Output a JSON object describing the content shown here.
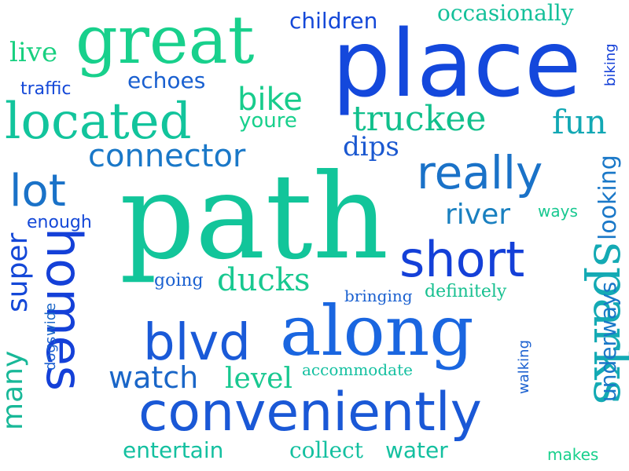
{
  "word_cloud": {
    "words": [
      {
        "text": "path",
        "color": "#12c59a"
      },
      {
        "text": "place",
        "color": "#1448dc"
      },
      {
        "text": "great",
        "color": "#18d08c"
      },
      {
        "text": "along",
        "color": "#1a66e0"
      },
      {
        "text": "conveniently",
        "color": "#1a58d6"
      },
      {
        "text": "located",
        "color": "#12c49c"
      },
      {
        "text": "blvd",
        "color": "#1a5ad8"
      },
      {
        "text": "sparks",
        "color": "#14aab4"
      },
      {
        "text": "short",
        "color": "#1440d8"
      },
      {
        "text": "homes",
        "color": "#1440d8"
      },
      {
        "text": "really",
        "color": "#1a72c8"
      },
      {
        "text": "lot",
        "color": "#1a72c8"
      },
      {
        "text": "truckee",
        "color": "#12c08c"
      },
      {
        "text": "connector",
        "color": "#1a78c8"
      },
      {
        "text": "watch",
        "color": "#1a66c8"
      },
      {
        "text": "fun",
        "color": "#12a8b4"
      },
      {
        "text": "bike",
        "color": "#18cc8c"
      },
      {
        "text": "river",
        "color": "#1a80c0"
      },
      {
        "text": "ducks",
        "color": "#18c890"
      },
      {
        "text": "level",
        "color": "#18c890"
      },
      {
        "text": "dips",
        "color": "#1a58d0"
      },
      {
        "text": "live",
        "color": "#18d080"
      },
      {
        "text": "children",
        "color": "#1448d8"
      },
      {
        "text": "echoes",
        "color": "#1a60d0"
      },
      {
        "text": "youre",
        "color": "#18d08c"
      },
      {
        "text": "occasionally",
        "color": "#14c09a"
      },
      {
        "text": "entertain",
        "color": "#14c0a0"
      },
      {
        "text": "collect",
        "color": "#14c0a0"
      },
      {
        "text": "water",
        "color": "#14c0a0"
      },
      {
        "text": "super",
        "color": "#1448d8"
      },
      {
        "text": "many",
        "color": "#18b898"
      },
      {
        "text": "looking",
        "color": "#1a78c8"
      },
      {
        "text": "underways",
        "color": "#1a78c8"
      },
      {
        "text": "traffic",
        "color": "#1448d8"
      },
      {
        "text": "enough",
        "color": "#1448d8"
      },
      {
        "text": "going",
        "color": "#1a60d0"
      },
      {
        "text": "bringing",
        "color": "#1a60d0"
      },
      {
        "text": "definitely",
        "color": "#18c090"
      },
      {
        "text": "accommodate",
        "color": "#14c0a0"
      },
      {
        "text": "ways",
        "color": "#18c890"
      },
      {
        "text": "biking",
        "color": "#1440d8"
      },
      {
        "text": "walking",
        "color": "#1a60d0"
      },
      {
        "text": "dogs",
        "color": "#1a60d0"
      },
      {
        "text": "wide",
        "color": "#1a66c8"
      },
      {
        "text": "makes",
        "color": "#18d08c"
      }
    ]
  }
}
